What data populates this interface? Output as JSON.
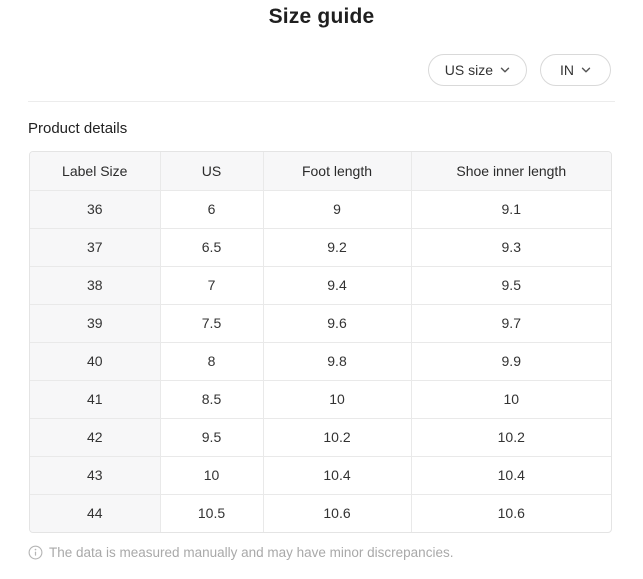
{
  "header": {
    "title": "Size guide"
  },
  "controls": {
    "size_system": {
      "label": "US size",
      "icon": "chevron-down-icon"
    },
    "unit": {
      "label": "IN",
      "icon": "chevron-down-icon"
    }
  },
  "section": {
    "title": "Product details"
  },
  "table": {
    "columns": [
      "Label Size",
      "US",
      "Foot length",
      "Shoe inner length"
    ],
    "rows": [
      [
        "36",
        "6",
        "9",
        "9.1"
      ],
      [
        "37",
        "6.5",
        "9.2",
        "9.3"
      ],
      [
        "38",
        "7",
        "9.4",
        "9.5"
      ],
      [
        "39",
        "7.5",
        "9.6",
        "9.7"
      ],
      [
        "40",
        "8",
        "9.8",
        "9.9"
      ],
      [
        "41",
        "8.5",
        "10",
        "10"
      ],
      [
        "42",
        "9.5",
        "10.2",
        "10.2"
      ],
      [
        "43",
        "10",
        "10.4",
        "10.4"
      ],
      [
        "44",
        "10.5",
        "10.6",
        "10.6"
      ]
    ]
  },
  "footer": {
    "icon": "info-icon",
    "note": "The data is measured manually and may have minor discrepancies."
  },
  "colors": {
    "header_cell_bg": "#f7f7f8",
    "border": "#e9e9e9",
    "muted_text": "#a9a9a9",
    "primary_text": "#222222"
  }
}
